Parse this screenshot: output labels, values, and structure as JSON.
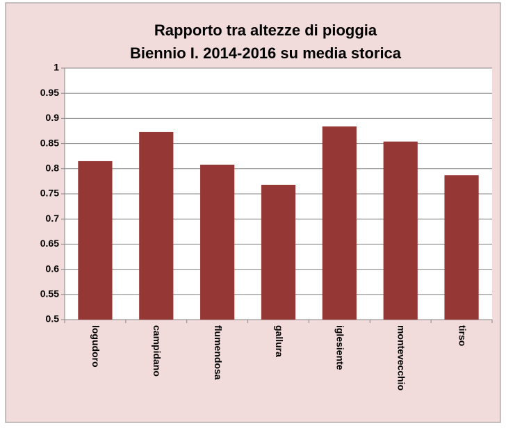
{
  "chart_data": {
    "type": "bar",
    "title": [
      "Rapporto tra altezze di pioggia",
      "Biennio I. 2014-2016 su media storica"
    ],
    "categories": [
      "logudoro",
      "campidano",
      "flumendosa",
      "gallura",
      "iglesiente",
      "montevecchio",
      "tirso"
    ],
    "values": [
      0.815,
      0.873,
      0.808,
      0.768,
      0.884,
      0.854,
      0.787
    ],
    "color": "#953735",
    "ylim": [
      0.5,
      1
    ],
    "yticks": [
      0.5,
      0.55,
      0.6,
      0.65,
      0.7,
      0.75,
      0.8,
      0.85,
      0.9,
      0.95,
      1
    ],
    "grid": true
  }
}
